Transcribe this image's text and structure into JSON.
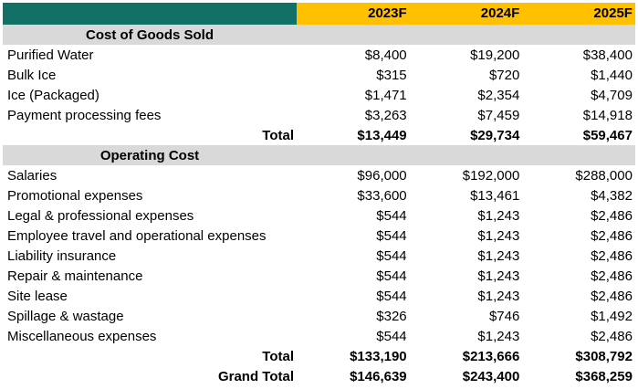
{
  "columns": [
    "2023F",
    "2024F",
    "2025F"
  ],
  "cogs": {
    "title": "Cost of Goods Sold",
    "rows": [
      {
        "label": "Purified Water",
        "v": [
          "$8,400",
          "$19,200",
          "$38,400"
        ]
      },
      {
        "label": "Bulk Ice",
        "v": [
          "$315",
          "$720",
          "$1,440"
        ]
      },
      {
        "label": "Ice (Packaged)",
        "v": [
          "$1,471",
          "$2,354",
          "$4,709"
        ]
      },
      {
        "label": "Payment processing fees",
        "v": [
          "$3,263",
          "$7,459",
          "$14,918"
        ]
      }
    ],
    "total": {
      "label": "Total",
      "v": [
        "$13,449",
        "$29,734",
        "$59,467"
      ]
    }
  },
  "opex": {
    "title": "Operating Cost",
    "rows": [
      {
        "label": "Salaries",
        "v": [
          "$96,000",
          "$192,000",
          "$288,000"
        ]
      },
      {
        "label": "Promotional expenses",
        "v": [
          "$33,600",
          "$13,461",
          "$4,382"
        ]
      },
      {
        "label": "Legal & professional expenses",
        "v": [
          "$544",
          "$1,243",
          "$2,486"
        ]
      },
      {
        "label": "Employee travel and operational expenses",
        "v": [
          "$544",
          "$1,243",
          "$2,486"
        ]
      },
      {
        "label": "Liability insurance",
        "v": [
          "$544",
          "$1,243",
          "$2,486"
        ]
      },
      {
        "label": "Repair & maintenance",
        "v": [
          "$544",
          "$1,243",
          "$2,486"
        ]
      },
      {
        "label": "Site lease",
        "v": [
          "$544",
          "$1,243",
          "$2,486"
        ]
      },
      {
        "label": "Spillage & wastage",
        "v": [
          "$326",
          "$746",
          "$1,492"
        ]
      },
      {
        "label": "Miscellaneous expenses",
        "v": [
          "$544",
          "$1,243",
          "$2,486"
        ]
      }
    ],
    "total": {
      "label": "Total",
      "v": [
        "$133,190",
        "$213,666",
        "$308,792"
      ]
    }
  },
  "grand_total": {
    "label": "Grand Total",
    "v": [
      "$146,639",
      "$243,400",
      "$368,259"
    ]
  }
}
